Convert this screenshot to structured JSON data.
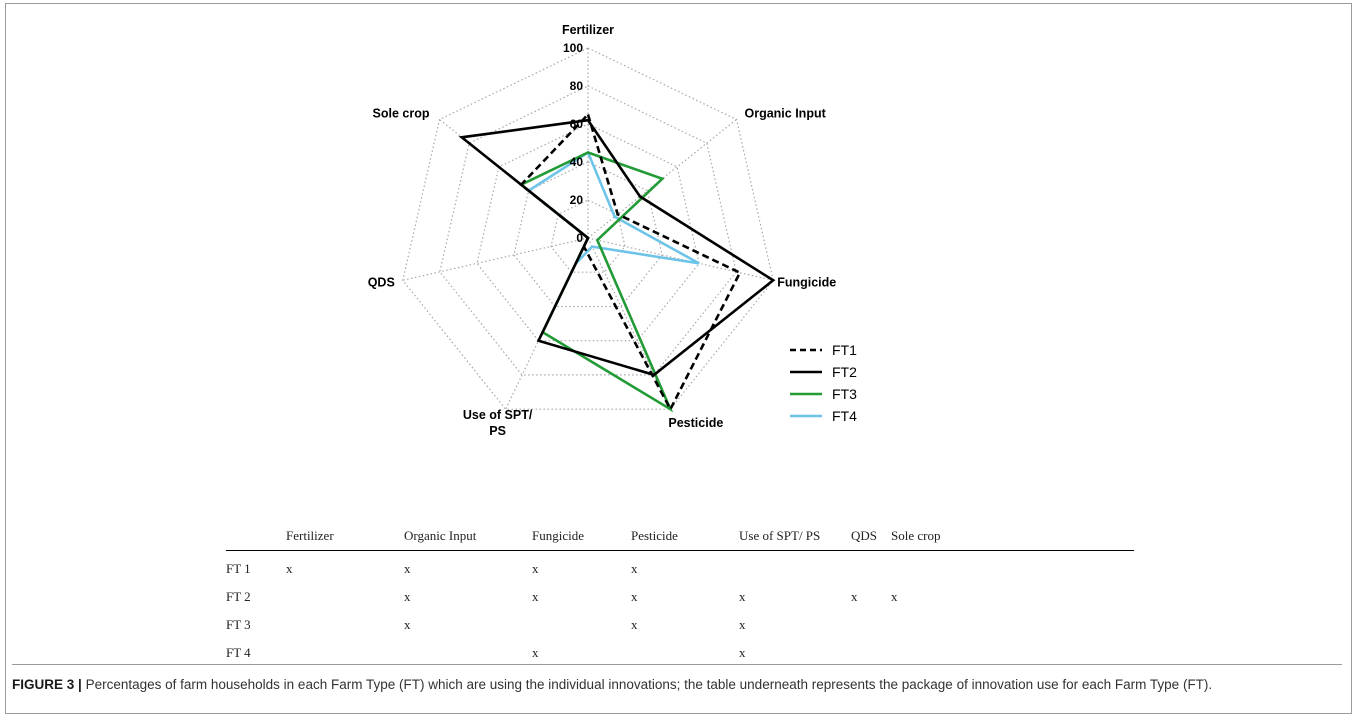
{
  "chart_data": {
    "type": "radar",
    "axes": [
      "Fertilizer",
      "Organic Input",
      "Fungicide",
      "Pesticide",
      "Use of SPT/ PS",
      "QDS",
      "Sole crop"
    ],
    "r_ticks": [
      "0",
      "20",
      "40",
      "60",
      "80",
      "100"
    ],
    "r_range": [
      0,
      100
    ],
    "grid": true,
    "legend_position": "bottom-right",
    "series": [
      {
        "name": "FT1",
        "color": "#000000",
        "dashed": true,
        "values": [
          65,
          20,
          82,
          100,
          5,
          0,
          45
        ]
      },
      {
        "name": "FT2",
        "color": "#000000",
        "dashed": false,
        "values": [
          62,
          35,
          100,
          80,
          60,
          0,
          85
        ]
      },
      {
        "name": "FT3",
        "color": "#229a35",
        "dashed": false,
        "values": [
          45,
          50,
          5,
          100,
          55,
          0,
          45
        ]
      },
      {
        "name": "FT4",
        "color": "#6ec4e8",
        "dashed": false,
        "values": [
          45,
          18,
          60,
          5,
          15,
          0,
          40
        ]
      }
    ]
  },
  "table": {
    "headers": [
      "",
      "Fertilizer",
      "Organic Input",
      "Fungicide",
      "Pesticide",
      "Use of SPT/ PS",
      "QDS",
      "Sole crop"
    ],
    "rows": [
      [
        "FT 1",
        "x",
        "x",
        "x",
        "x",
        "",
        "",
        ""
      ],
      [
        "FT 2",
        "",
        "x",
        "x",
        "x",
        "x",
        "x",
        "x"
      ],
      [
        "FT 3",
        "",
        "x",
        "",
        "x",
        "x",
        "",
        ""
      ],
      [
        "FT 4",
        "",
        "",
        "x",
        "",
        "x",
        "",
        ""
      ]
    ]
  },
  "caption": {
    "label": "FIGURE 3 |",
    "text": "Percentages of farm households in each Farm Type (FT) which are using the individual innovations; the table underneath represents the package of innovation use for each Farm Type (FT)."
  }
}
